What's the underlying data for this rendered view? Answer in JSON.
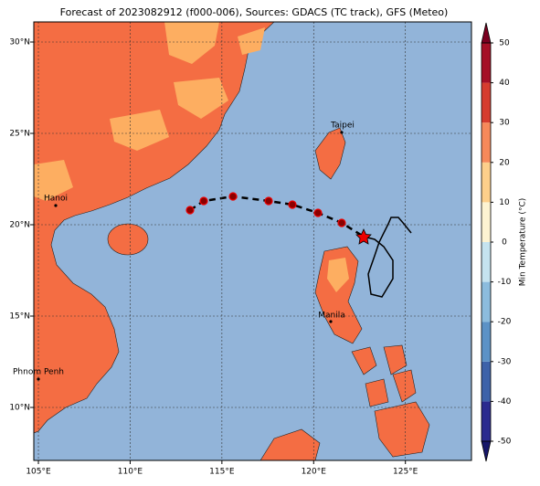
{
  "map": {
    "title": "Forecast of 2023082912 (f000-006), Sources: GDACS (TC track), GFS (Meteo)",
    "xlim": [
      104.75,
      128.6
    ],
    "ylim": [
      7.1,
      31.1
    ],
    "xticks": [
      {
        "value": 105,
        "label": "105°E"
      },
      {
        "value": 110,
        "label": "110°E"
      },
      {
        "value": 115,
        "label": "115°E"
      },
      {
        "value": 120,
        "label": "120°E"
      },
      {
        "value": 125,
        "label": "125°E"
      }
    ],
    "yticks": [
      {
        "value": 10,
        "label": "10°N"
      },
      {
        "value": 15,
        "label": "15°N"
      },
      {
        "value": 20,
        "label": "20°N"
      },
      {
        "value": 25,
        "label": "25°N"
      },
      {
        "value": 30,
        "label": "30°N"
      }
    ],
    "grid": true,
    "cities": [
      "Taipei",
      "Hanoi",
      "Manila",
      "Phnom Penh"
    ]
  },
  "colorbar": {
    "label": "Min Temperature (°C)",
    "ticks": [
      -50,
      -40,
      -30,
      -20,
      -10,
      0,
      10,
      20,
      30,
      40,
      50
    ],
    "colors": [
      "#2b2b8f",
      "#3d62a9",
      "#5c92c6",
      "#8cbcdd",
      "#c5e3ef",
      "#fdf3d2",
      "#fdcf8b",
      "#f6895a",
      "#d63c2e",
      "#a50f26"
    ],
    "under_color": "#17176a",
    "over_color": "#7a0020"
  }
}
